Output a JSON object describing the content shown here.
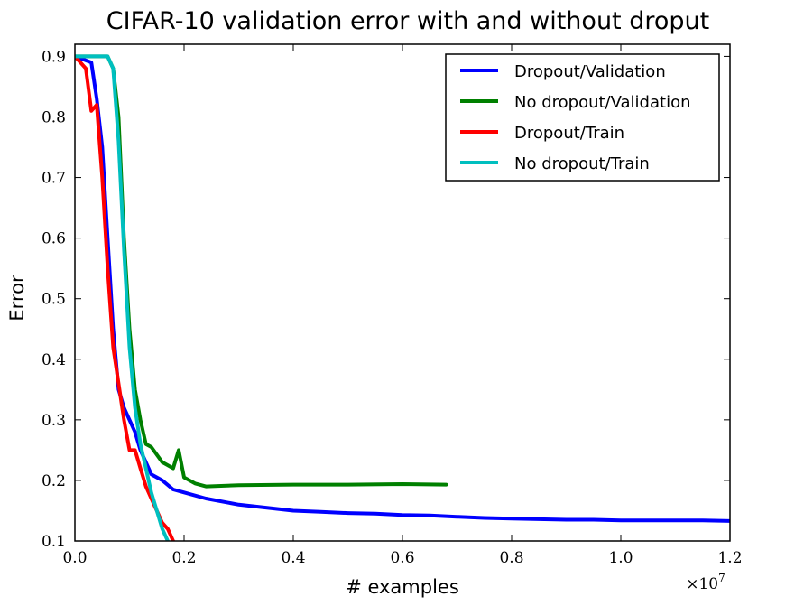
{
  "chart_data": {
    "type": "line",
    "title": "CIFAR-10 validation error with and without droput",
    "xlabel": "# examples",
    "ylabel": "Error",
    "x_scale_note": "×10",
    "x_scale_exp": "7",
    "xlim": [
      0,
      1.2
    ],
    "ylim": [
      0.1,
      0.92
    ],
    "x_ticks": [
      0.0,
      0.2,
      0.4,
      0.6,
      0.8,
      1.0,
      1.2
    ],
    "x_tick_labels": [
      "0.0",
      "0.2",
      "0.4",
      "0.6",
      "0.8",
      "1.0",
      "1.2"
    ],
    "y_ticks": [
      0.1,
      0.2,
      0.3,
      0.4,
      0.5,
      0.6,
      0.7,
      0.8,
      0.9
    ],
    "y_tick_labels": [
      "0.1",
      "0.2",
      "0.3",
      "0.4",
      "0.5",
      "0.6",
      "0.7",
      "0.8",
      "0.9"
    ],
    "legend_position": "top-right",
    "series": [
      {
        "name": "Dropout/Validation",
        "color": "#0000ff",
        "x": [
          0.0,
          0.03,
          0.04,
          0.05,
          0.06,
          0.07,
          0.08,
          0.09,
          0.1,
          0.11,
          0.12,
          0.13,
          0.14,
          0.16,
          0.18,
          0.2,
          0.24,
          0.3,
          0.35,
          0.4,
          0.45,
          0.5,
          0.55,
          0.6,
          0.65,
          0.7,
          0.75,
          0.8,
          0.85,
          0.9,
          0.95,
          1.0,
          1.05,
          1.1,
          1.15,
          1.2
        ],
        "y": [
          0.9,
          0.89,
          0.83,
          0.75,
          0.6,
          0.45,
          0.35,
          0.32,
          0.3,
          0.28,
          0.25,
          0.23,
          0.21,
          0.2,
          0.185,
          0.18,
          0.17,
          0.16,
          0.155,
          0.15,
          0.148,
          0.146,
          0.145,
          0.143,
          0.142,
          0.14,
          0.138,
          0.137,
          0.136,
          0.135,
          0.135,
          0.134,
          0.134,
          0.134,
          0.134,
          0.133
        ]
      },
      {
        "name": "No dropout/Validation",
        "color": "#008000",
        "x": [
          0.0,
          0.02,
          0.04,
          0.06,
          0.07,
          0.08,
          0.09,
          0.1,
          0.11,
          0.12,
          0.13,
          0.14,
          0.16,
          0.18,
          0.19,
          0.2,
          0.22,
          0.24,
          0.3,
          0.4,
          0.5,
          0.6,
          0.68
        ],
        "y": [
          0.9,
          0.9,
          0.9,
          0.9,
          0.88,
          0.8,
          0.6,
          0.45,
          0.35,
          0.3,
          0.26,
          0.255,
          0.23,
          0.22,
          0.25,
          0.205,
          0.195,
          0.19,
          0.192,
          0.193,
          0.193,
          0.194,
          0.193
        ]
      },
      {
        "name": "Dropout/Train",
        "color": "#ff0000",
        "x": [
          0.0,
          0.02,
          0.03,
          0.04,
          0.05,
          0.06,
          0.07,
          0.08,
          0.09,
          0.1,
          0.11,
          0.12,
          0.13,
          0.14,
          0.15,
          0.16,
          0.17,
          0.18
        ],
        "y": [
          0.9,
          0.88,
          0.81,
          0.82,
          0.7,
          0.55,
          0.42,
          0.36,
          0.3,
          0.25,
          0.25,
          0.22,
          0.19,
          0.17,
          0.15,
          0.13,
          0.12,
          0.1
        ]
      },
      {
        "name": "No dropout/Train",
        "color": "#00bfbf",
        "x": [
          0.0,
          0.02,
          0.04,
          0.06,
          0.07,
          0.08,
          0.09,
          0.1,
          0.11,
          0.12,
          0.13,
          0.14,
          0.15,
          0.16,
          0.17
        ],
        "y": [
          0.9,
          0.9,
          0.9,
          0.9,
          0.88,
          0.76,
          0.58,
          0.42,
          0.32,
          0.26,
          0.22,
          0.18,
          0.15,
          0.12,
          0.1
        ]
      }
    ]
  }
}
